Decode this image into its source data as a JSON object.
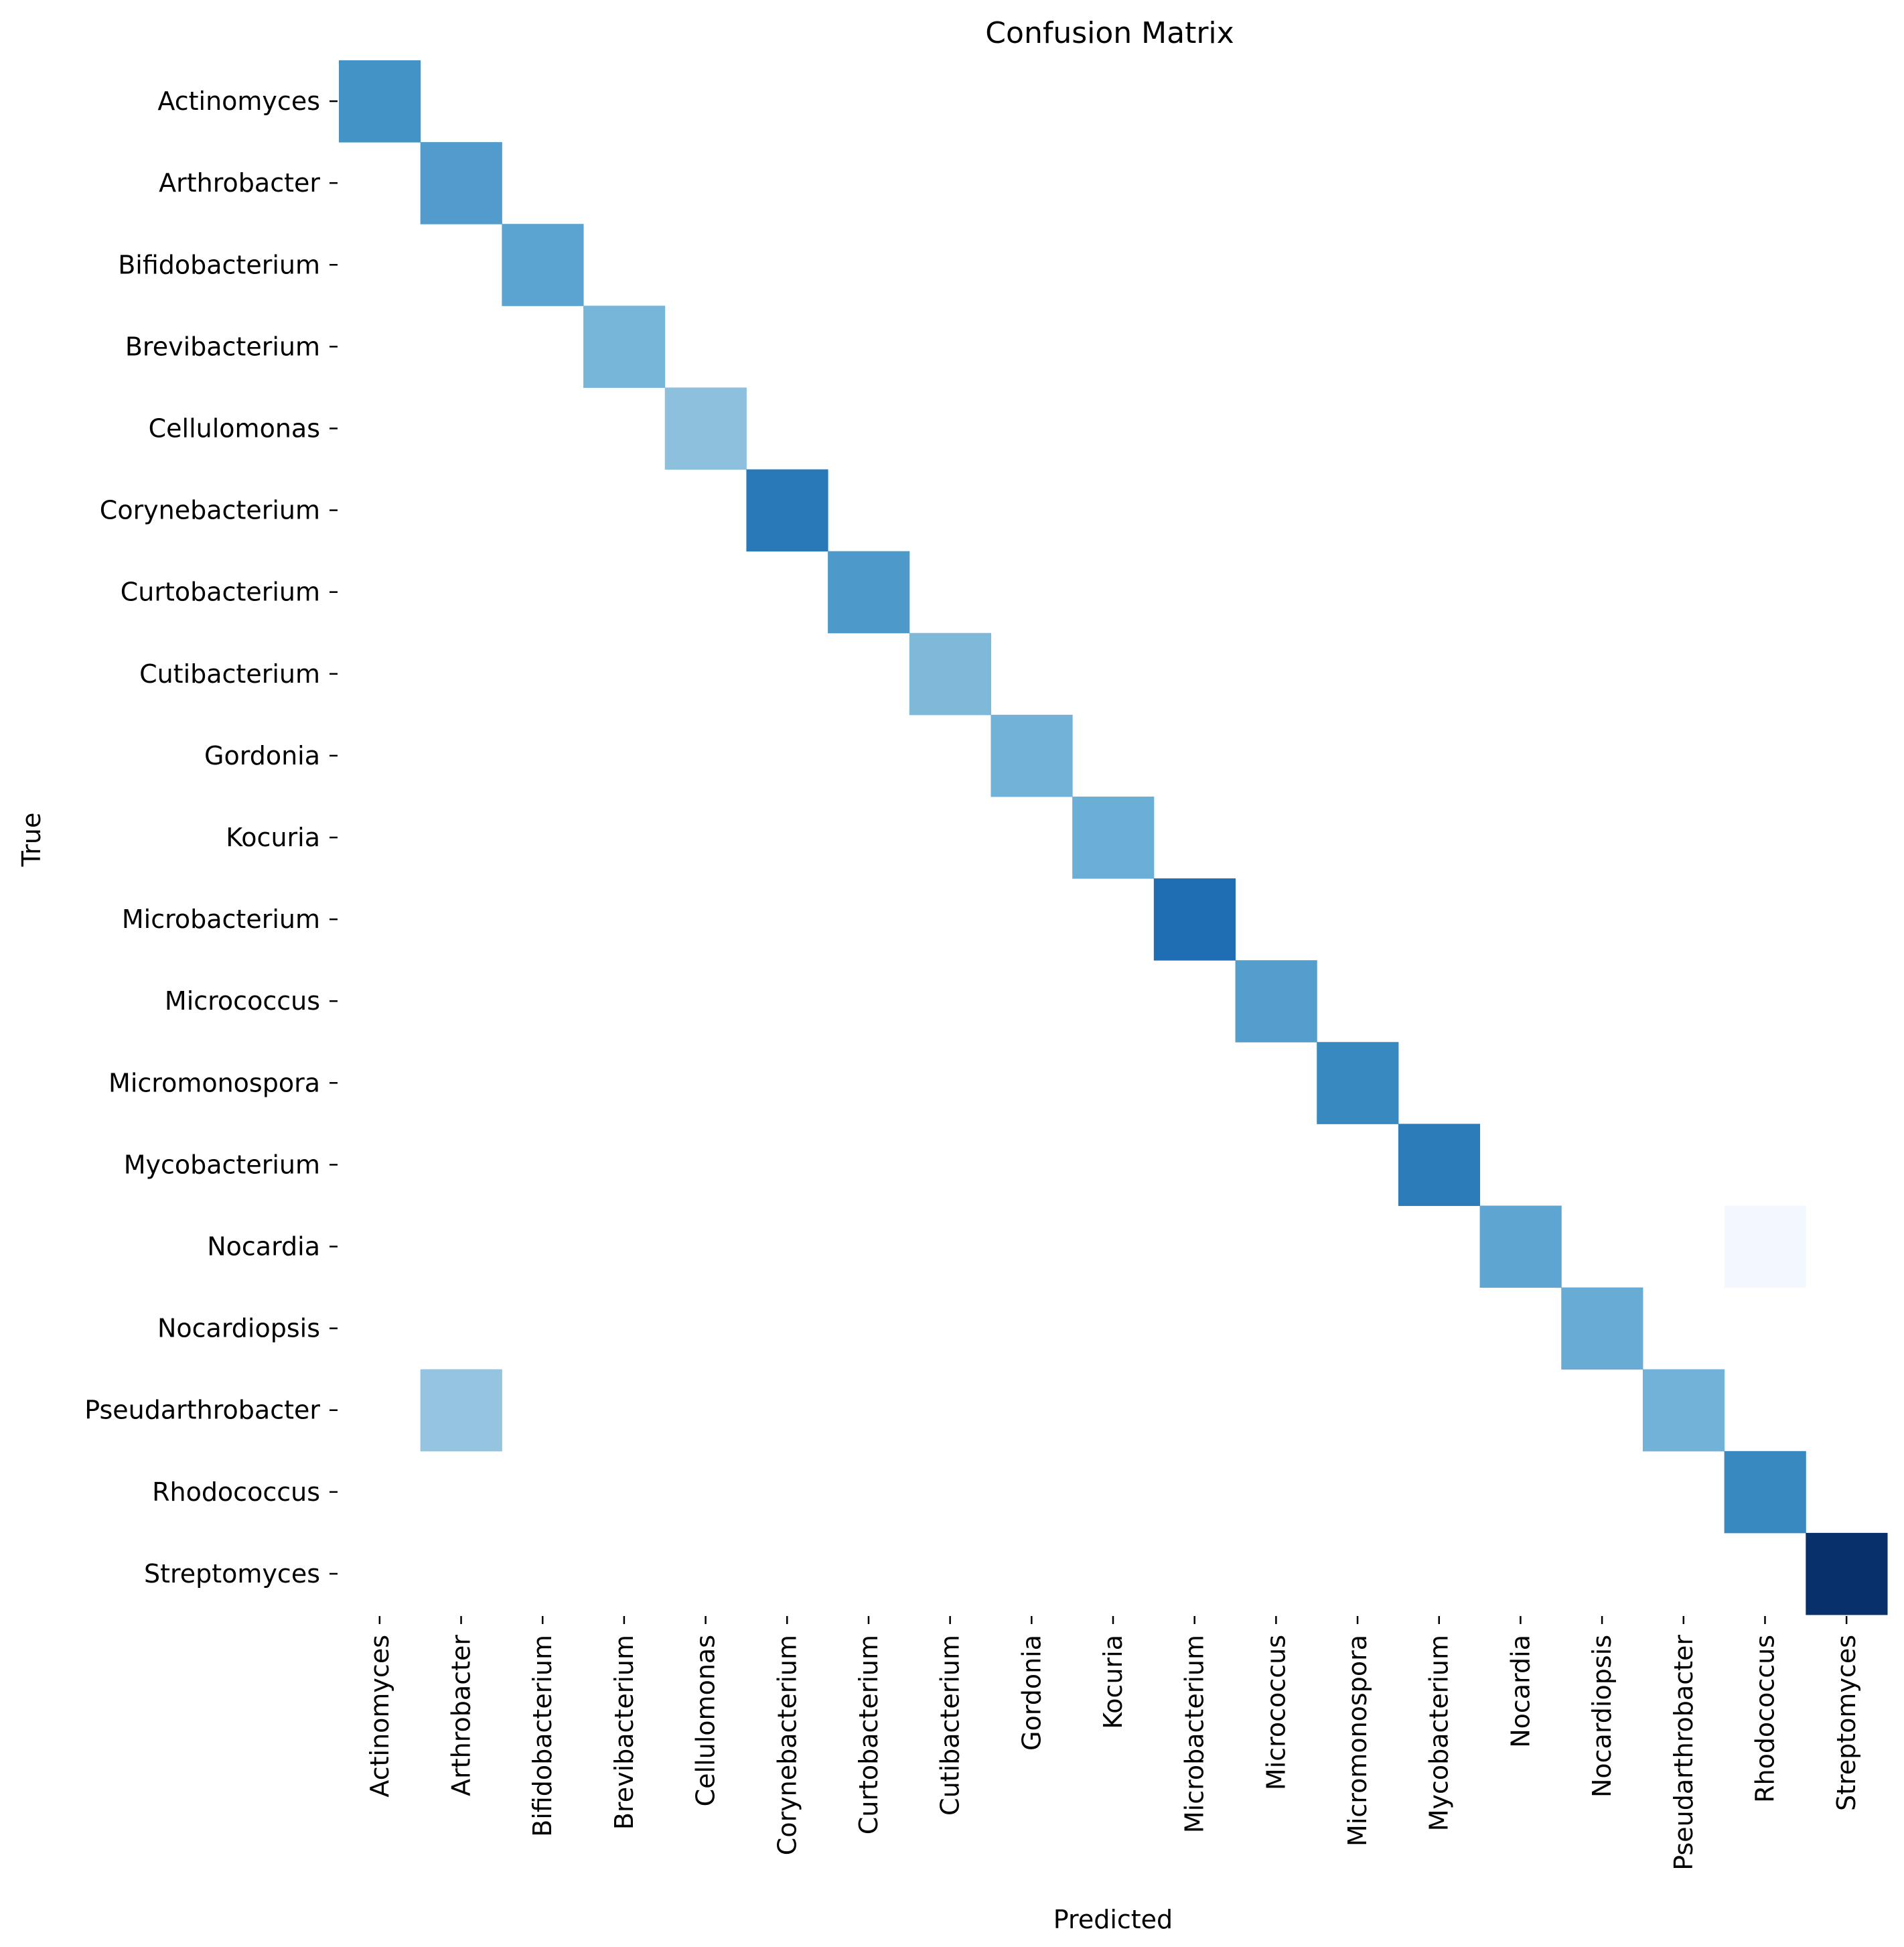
{
  "chart_data": {
    "type": "heatmap",
    "title": "Confusion Matrix",
    "xlabel": "Predicted",
    "ylabel": "True",
    "colormap": "Blues",
    "color_low": "#f7fbff",
    "color_high": "#08306b",
    "grid": false,
    "legend": "none",
    "colorbar": false,
    "x_categories": [
      "Actinomyces",
      "Arthrobacter",
      "Bifidobacterium",
      "Brevibacterium",
      "Cellulomonas",
      "Corynebacterium",
      "Curtobacterium",
      "Cutibacterium",
      "Gordonia",
      "Kocuria",
      "Microbacterium",
      "Micrococcus",
      "Micromonospora",
      "Mycobacterium",
      "Nocardia",
      "Nocardiopsis",
      "Pseudarthrobacter",
      "Rhodococcus",
      "Streptomyces"
    ],
    "y_categories": [
      "Actinomyces",
      "Arthrobacter",
      "Bifidobacterium",
      "Brevibacterium",
      "Cellulomonas",
      "Corynebacterium",
      "Curtobacterium",
      "Cutibacterium",
      "Gordonia",
      "Kocuria",
      "Microbacterium",
      "Micrococcus",
      "Micromonospora",
      "Mycobacterium",
      "Nocardia",
      "Nocardiopsis",
      "Pseudarthrobacter",
      "Rhodococcus",
      "Streptomyces"
    ],
    "cells": [
      {
        "row": "Actinomyces",
        "col": "Actinomyces",
        "intensity": 0.62
      },
      {
        "row": "Arthrobacter",
        "col": "Arthrobacter",
        "intensity": 0.58
      },
      {
        "row": "Bifidobacterium",
        "col": "Bifidobacterium",
        "intensity": 0.55
      },
      {
        "row": "Brevibacterium",
        "col": "Brevibacterium",
        "intensity": 0.47
      },
      {
        "row": "Cellulomonas",
        "col": "Cellulomonas",
        "intensity": 0.42
      },
      {
        "row": "Corynebacterium",
        "col": "Corynebacterium",
        "intensity": 0.72
      },
      {
        "row": "Curtobacterium",
        "col": "Curtobacterium",
        "intensity": 0.59
      },
      {
        "row": "Cutibacterium",
        "col": "Cutibacterium",
        "intensity": 0.45
      },
      {
        "row": "Gordonia",
        "col": "Gordonia",
        "intensity": 0.48
      },
      {
        "row": "Kocuria",
        "col": "Kocuria",
        "intensity": 0.5
      },
      {
        "row": "Microbacterium",
        "col": "Microbacterium",
        "intensity": 0.76
      },
      {
        "row": "Micrococcus",
        "col": "Micrococcus",
        "intensity": 0.57
      },
      {
        "row": "Micromonospora",
        "col": "Micromonospora",
        "intensity": 0.66
      },
      {
        "row": "Mycobacterium",
        "col": "Mycobacterium",
        "intensity": 0.71
      },
      {
        "row": "Nocardia",
        "col": "Nocardia",
        "intensity": 0.54
      },
      {
        "row": "Nocardia",
        "col": "Rhodococcus",
        "intensity": 0.02
      },
      {
        "row": "Nocardiopsis",
        "col": "Nocardiopsis",
        "intensity": 0.51
      },
      {
        "row": "Pseudarthrobacter",
        "col": "Arthrobacter",
        "intensity": 0.4
      },
      {
        "row": "Pseudarthrobacter",
        "col": "Pseudarthrobacter",
        "intensity": 0.48
      },
      {
        "row": "Rhodococcus",
        "col": "Rhodococcus",
        "intensity": 0.66
      },
      {
        "row": "Streptomyces",
        "col": "Streptomyces",
        "intensity": 1.0
      }
    ]
  }
}
